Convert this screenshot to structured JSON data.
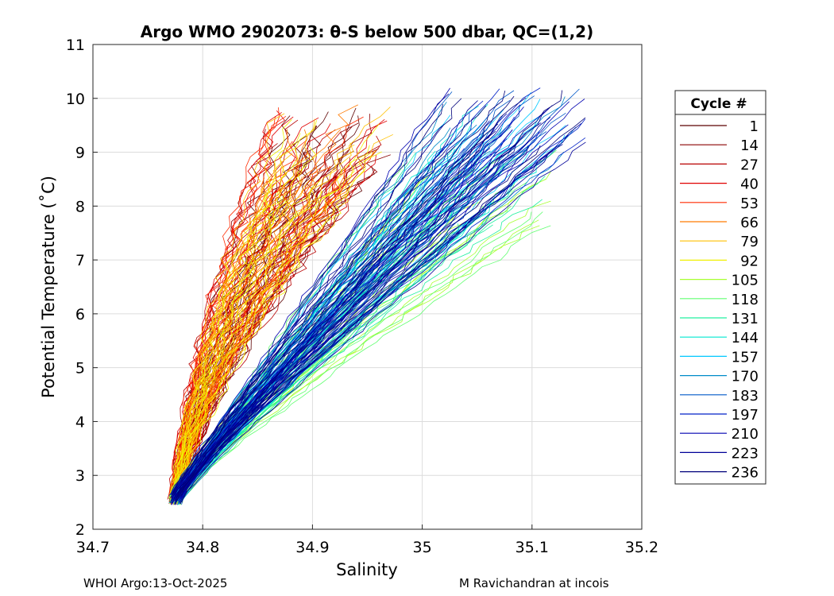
{
  "chart_data": {
    "type": "line",
    "title": "Argo WMO 2902073: θ-S below 500 dbar,  QC=(1,2)",
    "xlabel": "Salinity",
    "ylabel": "Potential Temperature (˚C)",
    "xlim": [
      34.7,
      35.2
    ],
    "ylim": [
      2,
      11
    ],
    "xticks": [
      "34.7",
      "34.8",
      "34.9",
      "35",
      "35.1",
      "35.2"
    ],
    "yticks": [
      "2",
      "3",
      "4",
      "5",
      "6",
      "7",
      "8",
      "9",
      "10",
      "11"
    ],
    "grid": true,
    "legend": {
      "title": "Cycle #",
      "placement": "outside-right",
      "entries": [
        {
          "label": "1",
          "color": "#5c0000"
        },
        {
          "label": "14",
          "color": "#8a0000"
        },
        {
          "label": "27",
          "color": "#b80000"
        },
        {
          "label": "40",
          "color": "#e00000"
        },
        {
          "label": "53",
          "color": "#ff2a00"
        },
        {
          "label": "66",
          "color": "#ff7a00"
        },
        {
          "label": "79",
          "color": "#ffc000"
        },
        {
          "label": "92",
          "color": "#f0f000"
        },
        {
          "label": "105",
          "color": "#a8ff30"
        },
        {
          "label": "118",
          "color": "#60ff70"
        },
        {
          "label": "131",
          "color": "#20f0a0"
        },
        {
          "label": "144",
          "color": "#00e8d0"
        },
        {
          "label": "157",
          "color": "#00c8ff"
        },
        {
          "label": "170",
          "color": "#008cc8"
        },
        {
          "label": "183",
          "color": "#0058c8"
        },
        {
          "label": "197",
          "color": "#0020c8"
        },
        {
          "label": "210",
          "color": "#0000b0"
        },
        {
          "label": "223",
          "color": "#000098"
        },
        {
          "label": "236",
          "color": "#00007a"
        }
      ]
    },
    "series_envelope": {
      "note_values": "theta-S profiles per cycle",
      "deep_end": {
        "salinity": 34.77,
        "theta": 2.5
      },
      "warm_cycles_early": {
        "salinity_range": [
          34.86,
          34.97
        ],
        "theta_max": 9.9
      },
      "warm_cycles_mid": {
        "salinity_range": [
          34.97,
          35.13
        ],
        "theta_max": 8.8
      },
      "warm_cycles_late": {
        "salinity_range": [
          35.02,
          35.15
        ],
        "theta_max": 10.2
      }
    }
  },
  "footer": {
    "left": "WHOI Argo:13-Oct-2025",
    "right": "M Ravichandran at incois"
  }
}
